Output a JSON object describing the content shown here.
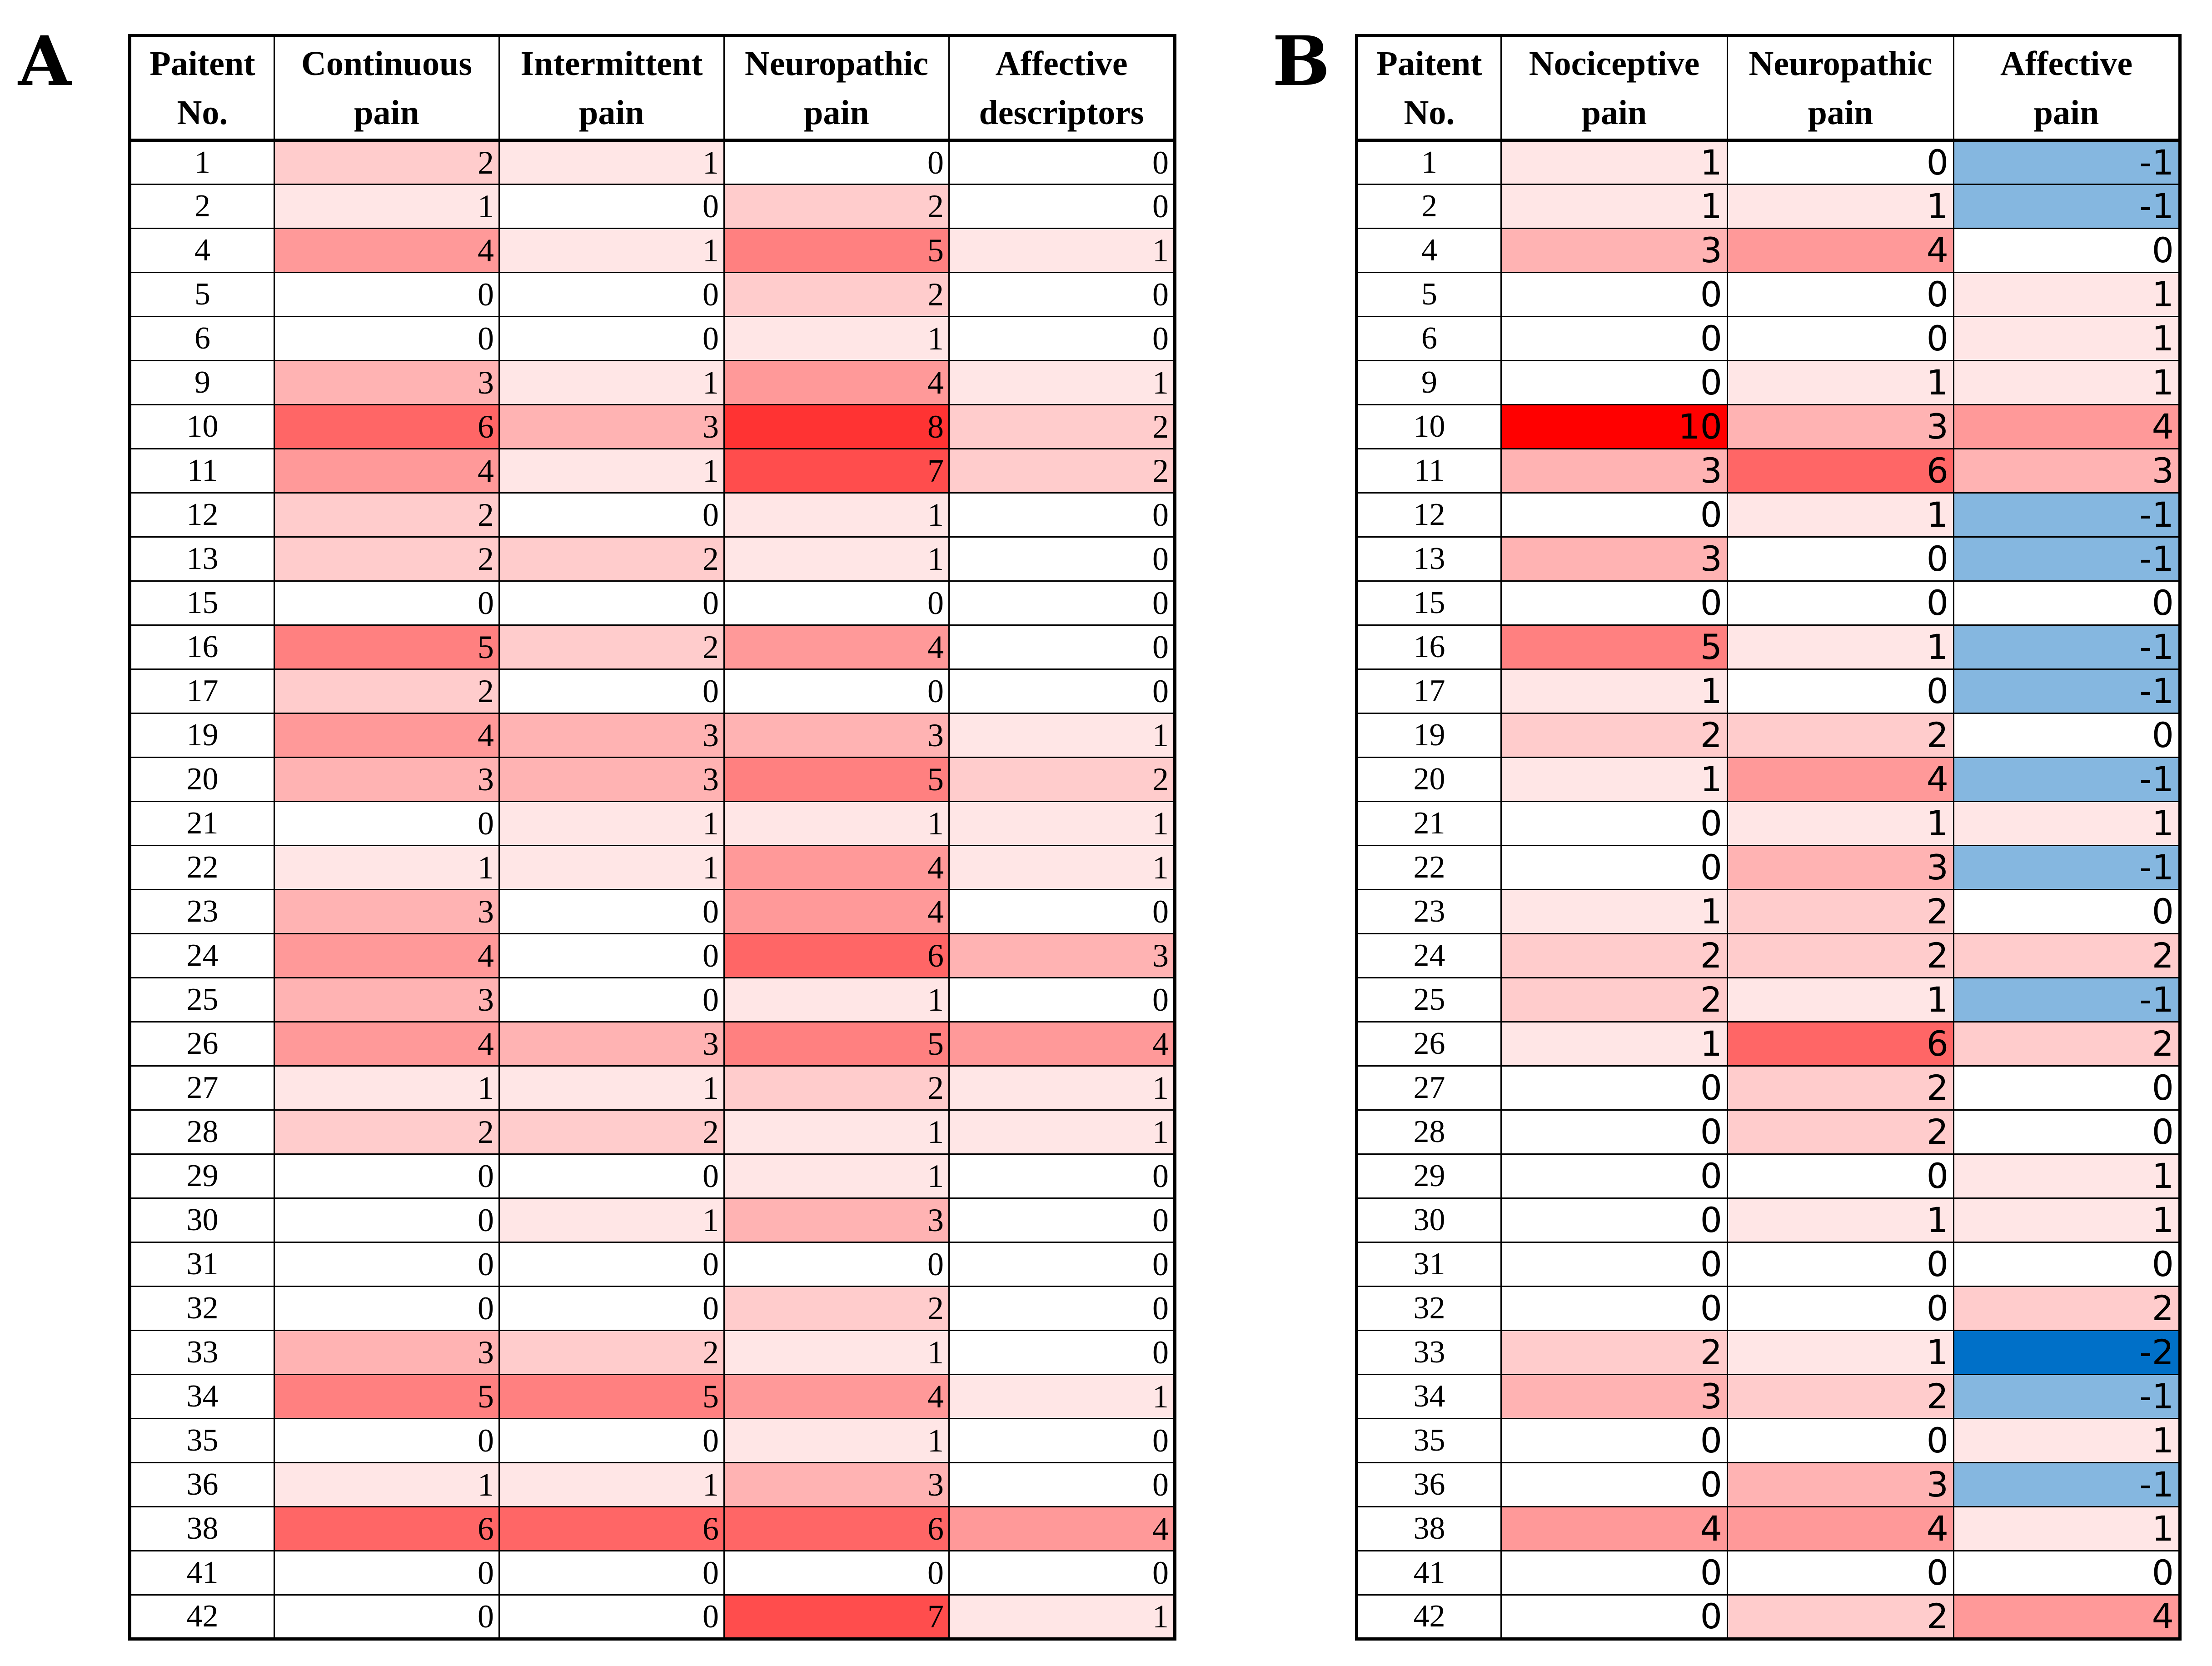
{
  "panels": [
    {
      "label": "A",
      "columns": [
        "Paitent No.",
        "Continuous pain",
        "Intermittent pain",
        "Neuropathic pain",
        "Affective descriptors"
      ],
      "rows": [
        [
          "1",
          2,
          1,
          0,
          0
        ],
        [
          "2",
          1,
          0,
          2,
          0
        ],
        [
          "4",
          4,
          1,
          5,
          1
        ],
        [
          "5",
          0,
          0,
          2,
          0
        ],
        [
          "6",
          0,
          0,
          1,
          0
        ],
        [
          "9",
          3,
          1,
          4,
          1
        ],
        [
          "10",
          6,
          3,
          8,
          2
        ],
        [
          "11",
          4,
          1,
          7,
          2
        ],
        [
          "12",
          2,
          0,
          1,
          0
        ],
        [
          "13",
          2,
          2,
          1,
          0
        ],
        [
          "15",
          0,
          0,
          0,
          0
        ],
        [
          "16",
          5,
          2,
          4,
          0
        ],
        [
          "17",
          2,
          0,
          0,
          0
        ],
        [
          "19",
          4,
          3,
          3,
          1
        ],
        [
          "20",
          3,
          3,
          5,
          2
        ],
        [
          "21",
          0,
          1,
          1,
          1
        ],
        [
          "22",
          1,
          1,
          4,
          1
        ],
        [
          "23",
          3,
          0,
          4,
          0
        ],
        [
          "24",
          4,
          0,
          6,
          3
        ],
        [
          "25",
          3,
          0,
          1,
          0
        ],
        [
          "26",
          4,
          3,
          5,
          4
        ],
        [
          "27",
          1,
          1,
          2,
          1
        ],
        [
          "28",
          2,
          2,
          1,
          1
        ],
        [
          "29",
          0,
          0,
          1,
          0
        ],
        [
          "30",
          0,
          1,
          3,
          0
        ],
        [
          "31",
          0,
          0,
          0,
          0
        ],
        [
          "32",
          0,
          0,
          2,
          0
        ],
        [
          "33",
          3,
          2,
          1,
          0
        ],
        [
          "34",
          5,
          5,
          4,
          1
        ],
        [
          "35",
          0,
          0,
          1,
          0
        ],
        [
          "36",
          1,
          1,
          3,
          0
        ],
        [
          "38",
          6,
          6,
          6,
          4
        ],
        [
          "41",
          0,
          0,
          0,
          0
        ],
        [
          "42",
          0,
          0,
          7,
          1
        ]
      ]
    },
    {
      "label": "B",
      "columns": [
        "Paitent No.",
        "Nociceptive pain",
        "Neuropathic pain",
        "Affective pain"
      ],
      "rows": [
        [
          "1",
          1,
          0,
          -1
        ],
        [
          "2",
          1,
          1,
          -1
        ],
        [
          "4",
          3,
          4,
          0
        ],
        [
          "5",
          0,
          0,
          1
        ],
        [
          "6",
          0,
          0,
          1
        ],
        [
          "9",
          0,
          1,
          1
        ],
        [
          "10",
          10,
          3,
          4
        ],
        [
          "11",
          3,
          6,
          3
        ],
        [
          "12",
          0,
          1,
          -1
        ],
        [
          "13",
          3,
          0,
          -1
        ],
        [
          "15",
          0,
          0,
          0
        ],
        [
          "16",
          5,
          1,
          -1
        ],
        [
          "17",
          1,
          0,
          -1
        ],
        [
          "19",
          2,
          2,
          0
        ],
        [
          "20",
          1,
          4,
          -1
        ],
        [
          "21",
          0,
          1,
          1
        ],
        [
          "22",
          0,
          3,
          -1
        ],
        [
          "23",
          1,
          2,
          0
        ],
        [
          "24",
          2,
          2,
          2
        ],
        [
          "25",
          2,
          1,
          -1
        ],
        [
          "26",
          1,
          6,
          2
        ],
        [
          "27",
          0,
          2,
          0
        ],
        [
          "28",
          0,
          2,
          0
        ],
        [
          "29",
          0,
          0,
          1
        ],
        [
          "30",
          0,
          1,
          1
        ],
        [
          "31",
          0,
          0,
          0
        ],
        [
          "32",
          0,
          0,
          2
        ],
        [
          "33",
          2,
          1,
          -2
        ],
        [
          "34",
          3,
          2,
          -1
        ],
        [
          "35",
          0,
          0,
          1
        ],
        [
          "36",
          0,
          3,
          -1
        ],
        [
          "38",
          4,
          4,
          1
        ],
        [
          "41",
          0,
          0,
          0
        ],
        [
          "42",
          0,
          2,
          4
        ]
      ]
    }
  ],
  "chart_data": [
    {
      "type": "heatmap",
      "panel": "A",
      "row_header": "Paitent No.",
      "categories": [
        "1",
        "2",
        "4",
        "5",
        "6",
        "9",
        "10",
        "11",
        "12",
        "13",
        "15",
        "16",
        "17",
        "19",
        "20",
        "21",
        "22",
        "23",
        "24",
        "25",
        "26",
        "27",
        "28",
        "29",
        "30",
        "31",
        "32",
        "33",
        "34",
        "35",
        "36",
        "38",
        "41",
        "42"
      ],
      "series": [
        {
          "name": "Continuous pain",
          "values": [
            2,
            1,
            4,
            0,
            0,
            3,
            6,
            4,
            2,
            2,
            0,
            5,
            2,
            4,
            3,
            0,
            1,
            3,
            4,
            3,
            4,
            1,
            2,
            0,
            0,
            0,
            0,
            3,
            5,
            0,
            1,
            6,
            0,
            0
          ]
        },
        {
          "name": "Intermittent pain",
          "values": [
            1,
            0,
            1,
            0,
            0,
            1,
            3,
            1,
            0,
            2,
            0,
            2,
            0,
            3,
            3,
            1,
            1,
            0,
            0,
            0,
            3,
            1,
            2,
            0,
            1,
            0,
            0,
            2,
            5,
            0,
            1,
            6,
            0,
            0
          ]
        },
        {
          "name": "Neuropathic pain",
          "values": [
            0,
            2,
            5,
            2,
            1,
            4,
            8,
            7,
            1,
            1,
            0,
            4,
            0,
            3,
            5,
            1,
            4,
            4,
            6,
            1,
            5,
            2,
            1,
            1,
            3,
            0,
            2,
            1,
            4,
            1,
            3,
            6,
            0,
            7
          ]
        },
        {
          "name": "Affective descriptors",
          "values": [
            0,
            0,
            1,
            0,
            0,
            1,
            2,
            2,
            0,
            0,
            0,
            0,
            0,
            1,
            2,
            1,
            1,
            0,
            3,
            0,
            4,
            1,
            1,
            0,
            0,
            0,
            0,
            0,
            1,
            0,
            0,
            4,
            0,
            1
          ]
        }
      ],
      "colors": {
        "zero": "#ffffff",
        "positive_max": "#ff0000"
      },
      "color_max": 10
    },
    {
      "type": "heatmap",
      "panel": "B",
      "row_header": "Paitent No.",
      "categories": [
        "1",
        "2",
        "4",
        "5",
        "6",
        "9",
        "10",
        "11",
        "12",
        "13",
        "15",
        "16",
        "17",
        "19",
        "20",
        "21",
        "22",
        "23",
        "24",
        "25",
        "26",
        "27",
        "28",
        "29",
        "30",
        "31",
        "32",
        "33",
        "34",
        "35",
        "36",
        "38",
        "41",
        "42"
      ],
      "series": [
        {
          "name": "Nociceptive pain",
          "values": [
            1,
            1,
            3,
            0,
            0,
            0,
            10,
            3,
            0,
            3,
            0,
            5,
            1,
            2,
            1,
            0,
            0,
            1,
            2,
            2,
            1,
            0,
            0,
            0,
            0,
            0,
            0,
            2,
            3,
            0,
            0,
            4,
            0,
            0
          ]
        },
        {
          "name": "Neuropathic pain",
          "values": [
            0,
            1,
            4,
            0,
            0,
            1,
            3,
            6,
            1,
            0,
            0,
            1,
            0,
            2,
            4,
            1,
            3,
            2,
            2,
            1,
            6,
            2,
            2,
            0,
            1,
            0,
            0,
            1,
            2,
            0,
            3,
            4,
            0,
            2
          ]
        },
        {
          "name": "Affective pain",
          "values": [
            -1,
            -1,
            0,
            1,
            1,
            1,
            4,
            3,
            -1,
            -1,
            0,
            -1,
            -1,
            0,
            -1,
            1,
            -1,
            0,
            2,
            -1,
            2,
            0,
            0,
            1,
            1,
            0,
            2,
            -2,
            -1,
            1,
            -1,
            1,
            0,
            4
          ]
        }
      ],
      "colors": {
        "zero": "#ffffff",
        "positive_max": "#ff0000",
        "negative_1": "#85b7e0",
        "negative_2": "#0070c8"
      },
      "color_max": 10
    }
  ]
}
